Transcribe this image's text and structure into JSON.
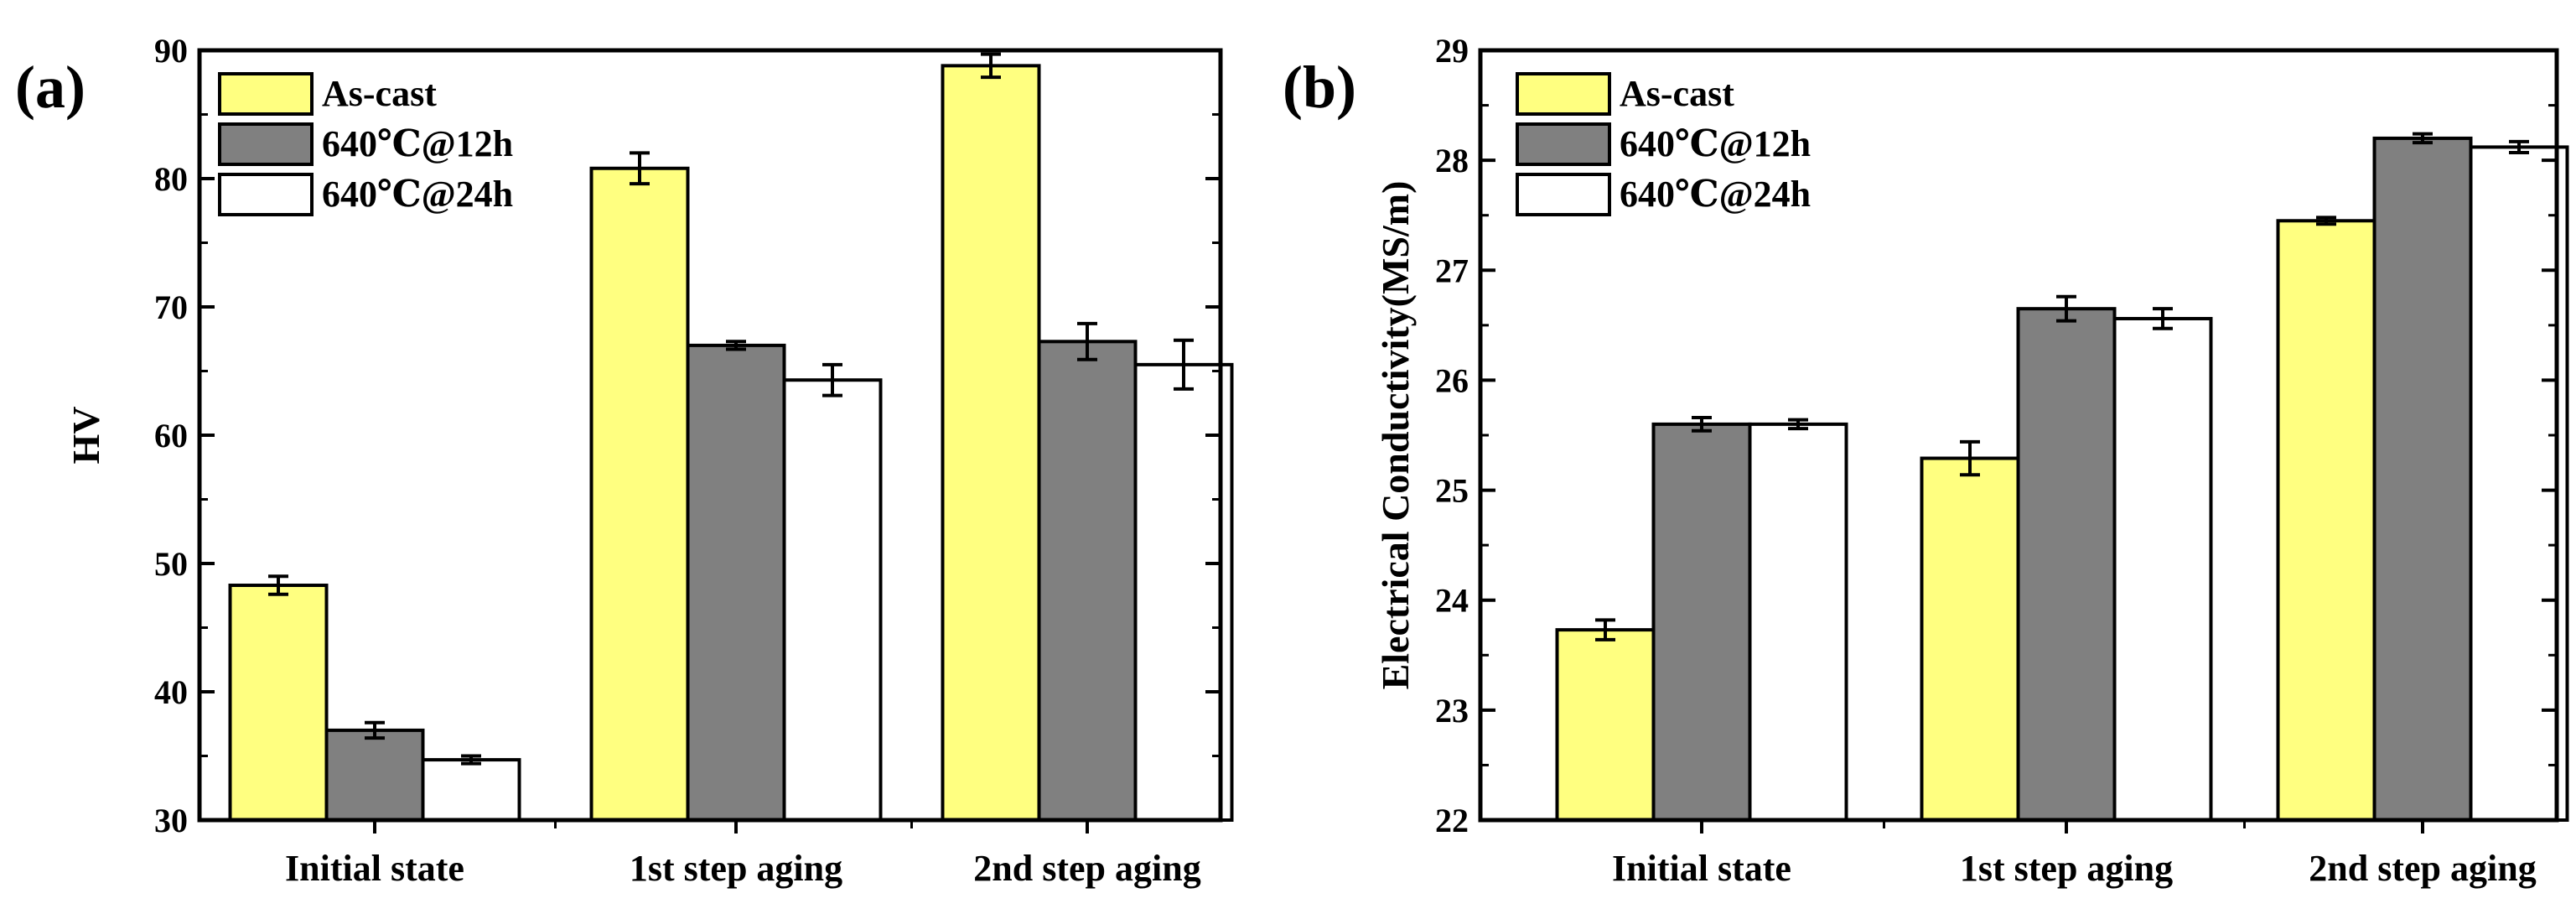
{
  "chart_data": [
    {
      "type": "bar",
      "panel_label": "(a)",
      "title": "",
      "xlabel": "",
      "ylabel": "HV",
      "ylim": [
        30,
        90
      ],
      "yticks": [
        30,
        40,
        50,
        60,
        70,
        80,
        90
      ],
      "categories": [
        "Initial state",
        "1st step aging",
        "2nd step aging"
      ],
      "legend": "top-left",
      "grid": false,
      "series": [
        {
          "name": "As-cast",
          "color": "#ffff80",
          "values": [
            48.3,
            80.8,
            88.8
          ],
          "errors": [
            0.7,
            1.2,
            0.9
          ]
        },
        {
          "name": "640℃@12h",
          "color": "#808080",
          "values": [
            37.0,
            67.0,
            67.3
          ],
          "errors": [
            0.6,
            0.3,
            1.4
          ]
        },
        {
          "name": "640℃@24h",
          "color": "#ffffff",
          "values": [
            34.7,
            64.3,
            65.5
          ],
          "errors": [
            0.3,
            1.2,
            1.9
          ]
        }
      ]
    },
    {
      "type": "bar",
      "panel_label": "(b)",
      "title": "",
      "xlabel": "",
      "ylabel": "Electrical Conductivity(MS/m)",
      "ylim": [
        22,
        29
      ],
      "yticks": [
        22,
        23,
        24,
        25,
        26,
        27,
        28,
        29
      ],
      "categories": [
        "Initial state",
        "1st step aging",
        "2nd step aging"
      ],
      "legend": "top-left",
      "grid": false,
      "series": [
        {
          "name": "As-cast",
          "color": "#ffff80",
          "values": [
            23.73,
            25.29,
            27.45
          ],
          "errors": [
            0.09,
            0.15,
            0.03
          ]
        },
        {
          "name": "640℃@12h",
          "color": "#808080",
          "values": [
            25.6,
            26.65,
            28.2
          ],
          "errors": [
            0.06,
            0.11,
            0.04
          ]
        },
        {
          "name": "640℃@24h",
          "color": "#ffffff",
          "values": [
            25.6,
            26.56,
            28.12
          ],
          "errors": [
            0.04,
            0.09,
            0.05
          ]
        }
      ]
    }
  ]
}
